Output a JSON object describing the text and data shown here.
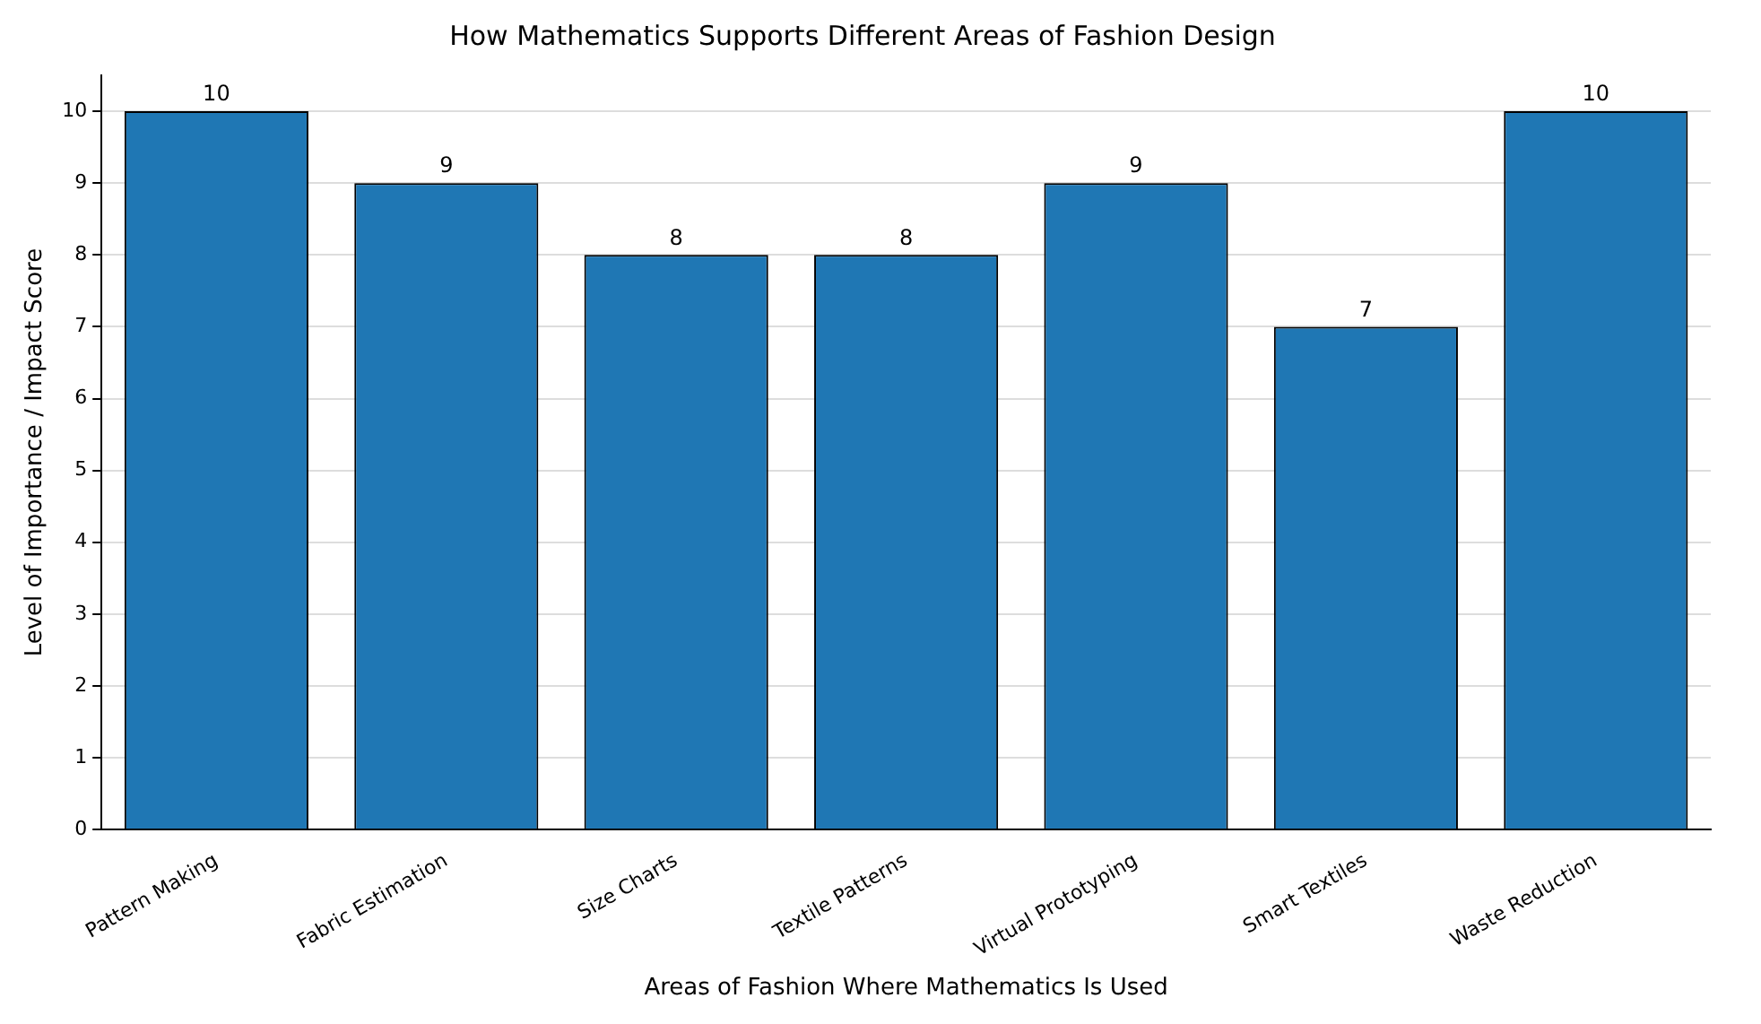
{
  "chart_data": {
    "type": "bar",
    "title": "How Mathematics Supports Different Areas of Fashion Design",
    "xlabel": "Areas of Fashion Where Mathematics Is Used",
    "ylabel": "Level of Importance / Impact Score",
    "categories": [
      "Pattern Making",
      "Fabric Estimation",
      "Size Charts",
      "Textile Patterns",
      "Virtual Prototyping",
      "Smart Textiles",
      "Waste Reduction"
    ],
    "values": [
      10,
      9,
      8,
      8,
      9,
      7,
      10
    ],
    "color": "#1f77b4",
    "ylim": [
      0,
      10.5
    ],
    "yticks": [
      0,
      1,
      2,
      3,
      4,
      5,
      6,
      7,
      8,
      9,
      10
    ],
    "grid": "y",
    "data_labels": true
  }
}
